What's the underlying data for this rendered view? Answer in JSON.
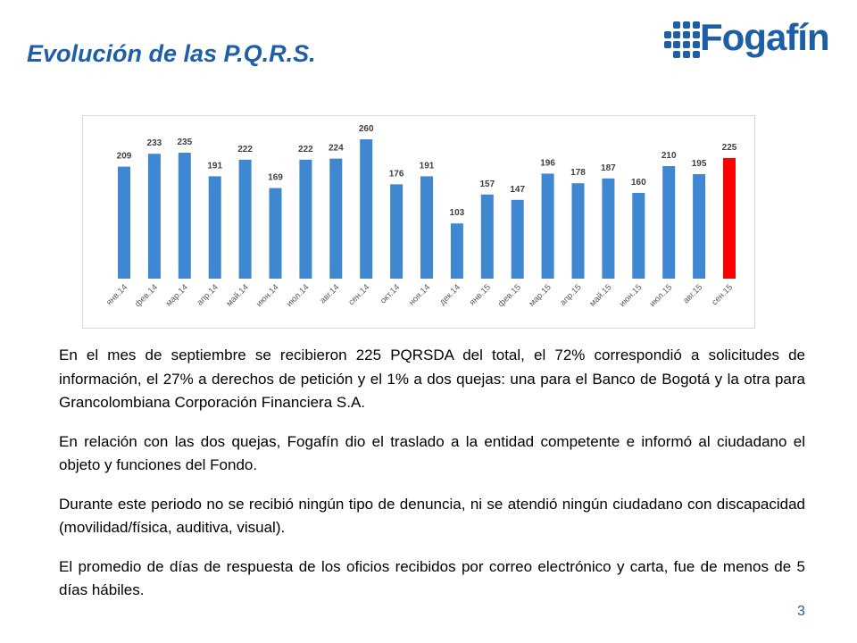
{
  "page": {
    "title": "Evolución de las P.Q.R.S.",
    "logo_text": "Fogafín",
    "page_number": "3",
    "paragraphs": [
      "En el mes de septiembre se recibieron 225 PQRSDA del total, el 72% correspondió a solicitudes de información, el 27% a derechos de petición y el 1% a dos quejas: una para el Banco de Bogotá y la otra para Grancolombiana Corporación Financiera S.A.",
      "En relación con las dos quejas, Fogafín dio el traslado a la entidad competente e informó al ciudadano el objeto y funciones del Fondo.",
      "Durante este periodo no se recibió ningún tipo de denuncia, ni se atendió ningún ciudadano con discapacidad (movilidad/física, auditiva, visual).",
      "El promedio de días de respuesta de los oficios recibidos por correo electrónico y carta, fue de menos de 5 días hábiles."
    ]
  },
  "colors": {
    "brand": "#1d5fa6",
    "bar": "#3f87d1",
    "highlight_bar": "#ff0000"
  },
  "chart_data": {
    "type": "bar",
    "categories": [
      "янв.14",
      "фев.14",
      "мар.14",
      "апр.14",
      "май.14",
      "июн.14",
      "июл.14",
      "авг.14",
      "сен.14",
      "окт.14",
      "ноя.14",
      "дек.14",
      "янв.15",
      "фев.15",
      "мар.15",
      "апр.15",
      "май.15",
      "июн.15",
      "июл.15",
      "авг.15",
      "сен.15"
    ],
    "values": [
      209,
      233,
      235,
      191,
      222,
      169,
      222,
      224,
      260,
      176,
      191,
      103,
      157,
      147,
      196,
      178,
      187,
      160,
      210,
      195,
      225
    ],
    "highlight_index": 20,
    "ylim": [
      0,
      260
    ],
    "grid": false,
    "legend": "none",
    "data_labels": true
  }
}
